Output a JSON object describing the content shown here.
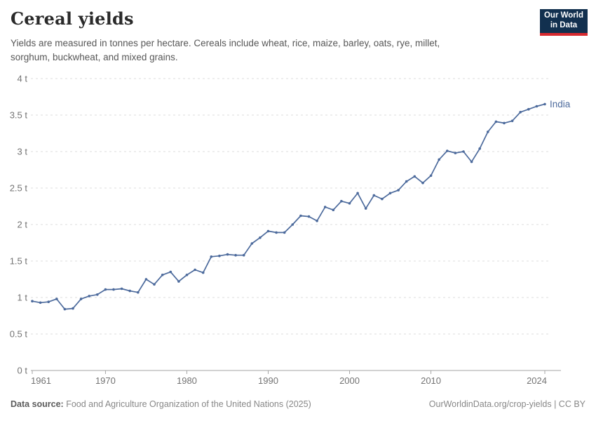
{
  "header": {
    "title": "Cereal yields",
    "subtitle_line1": "Yields are measured in tonnes per hectare. Cereals include wheat, rice, maize, barley, oats, rye, millet,",
    "subtitle_line2": "sorghum, buckwheat, and mixed grains."
  },
  "logo": {
    "line1": "Our World",
    "line2": "in Data",
    "bg_color": "#12304F",
    "accent_color": "#D7292F"
  },
  "chart_data": {
    "type": "line",
    "title": "Cereal yields",
    "unit": "tonnes per hectare",
    "grid": "horizontal dashed",
    "legend_position": "end-of-line label",
    "ylim": [
      0,
      4
    ],
    "xlim": [
      1961,
      2024
    ],
    "y_ticks": [
      {
        "value": 0,
        "label": "0 t"
      },
      {
        "value": 0.5,
        "label": "0.5 t"
      },
      {
        "value": 1,
        "label": "1 t"
      },
      {
        "value": 1.5,
        "label": "1.5 t"
      },
      {
        "value": 2,
        "label": "2 t"
      },
      {
        "value": 2.5,
        "label": "2.5 t"
      },
      {
        "value": 3,
        "label": "3 t"
      },
      {
        "value": 3.5,
        "label": "3.5 t"
      },
      {
        "value": 4,
        "label": "4 t"
      }
    ],
    "x_ticks": [
      {
        "value": 1961,
        "label": "1961"
      },
      {
        "value": 1970,
        "label": "1970"
      },
      {
        "value": 1980,
        "label": "1980"
      },
      {
        "value": 1990,
        "label": "1990"
      },
      {
        "value": 2000,
        "label": "2000"
      },
      {
        "value": 2010,
        "label": "2010"
      },
      {
        "value": 2024,
        "label": "2024"
      }
    ],
    "x": [
      1961,
      1962,
      1963,
      1964,
      1965,
      1966,
      1967,
      1968,
      1969,
      1970,
      1971,
      1972,
      1973,
      1974,
      1975,
      1976,
      1977,
      1978,
      1979,
      1980,
      1981,
      1982,
      1983,
      1984,
      1985,
      1986,
      1987,
      1988,
      1989,
      1990,
      1991,
      1992,
      1993,
      1994,
      1995,
      1996,
      1997,
      1998,
      1999,
      2000,
      2001,
      2002,
      2003,
      2004,
      2005,
      2006,
      2007,
      2008,
      2009,
      2010,
      2011,
      2012,
      2013,
      2014,
      2015,
      2016,
      2017,
      2018,
      2019,
      2020,
      2021,
      2022,
      2023,
      2024
    ],
    "series": [
      {
        "name": "India",
        "color": "#4C6A9C",
        "values": [
          0.95,
          0.93,
          0.94,
          0.98,
          0.84,
          0.85,
          0.98,
          1.02,
          1.04,
          1.11,
          1.11,
          1.12,
          1.09,
          1.07,
          1.25,
          1.18,
          1.31,
          1.35,
          1.22,
          1.31,
          1.38,
          1.34,
          1.56,
          1.57,
          1.59,
          1.58,
          1.58,
          1.74,
          1.82,
          1.91,
          1.89,
          1.89,
          2.0,
          2.12,
          2.11,
          2.05,
          2.24,
          2.2,
          2.32,
          2.29,
          2.43,
          2.22,
          2.4,
          2.35,
          2.43,
          2.47,
          2.59,
          2.66,
          2.57,
          2.67,
          2.89,
          3.01,
          2.98,
          3.0,
          2.86,
          3.04,
          3.27,
          3.41,
          3.39,
          3.42,
          3.54,
          3.58,
          3.62,
          3.65
        ]
      }
    ]
  },
  "footer": {
    "source_label": "Data source:",
    "source_text": "Food and Agriculture Organization of the United Nations (2025)",
    "link_text": "OurWorldinData.org/crop-yields | CC BY"
  },
  "colors": {
    "line": "#4C6A9C",
    "grid": "#DDDDDD",
    "axis": "#A5A5A5",
    "tick_label": "#737373",
    "entity_label": "#4C6A9C"
  }
}
